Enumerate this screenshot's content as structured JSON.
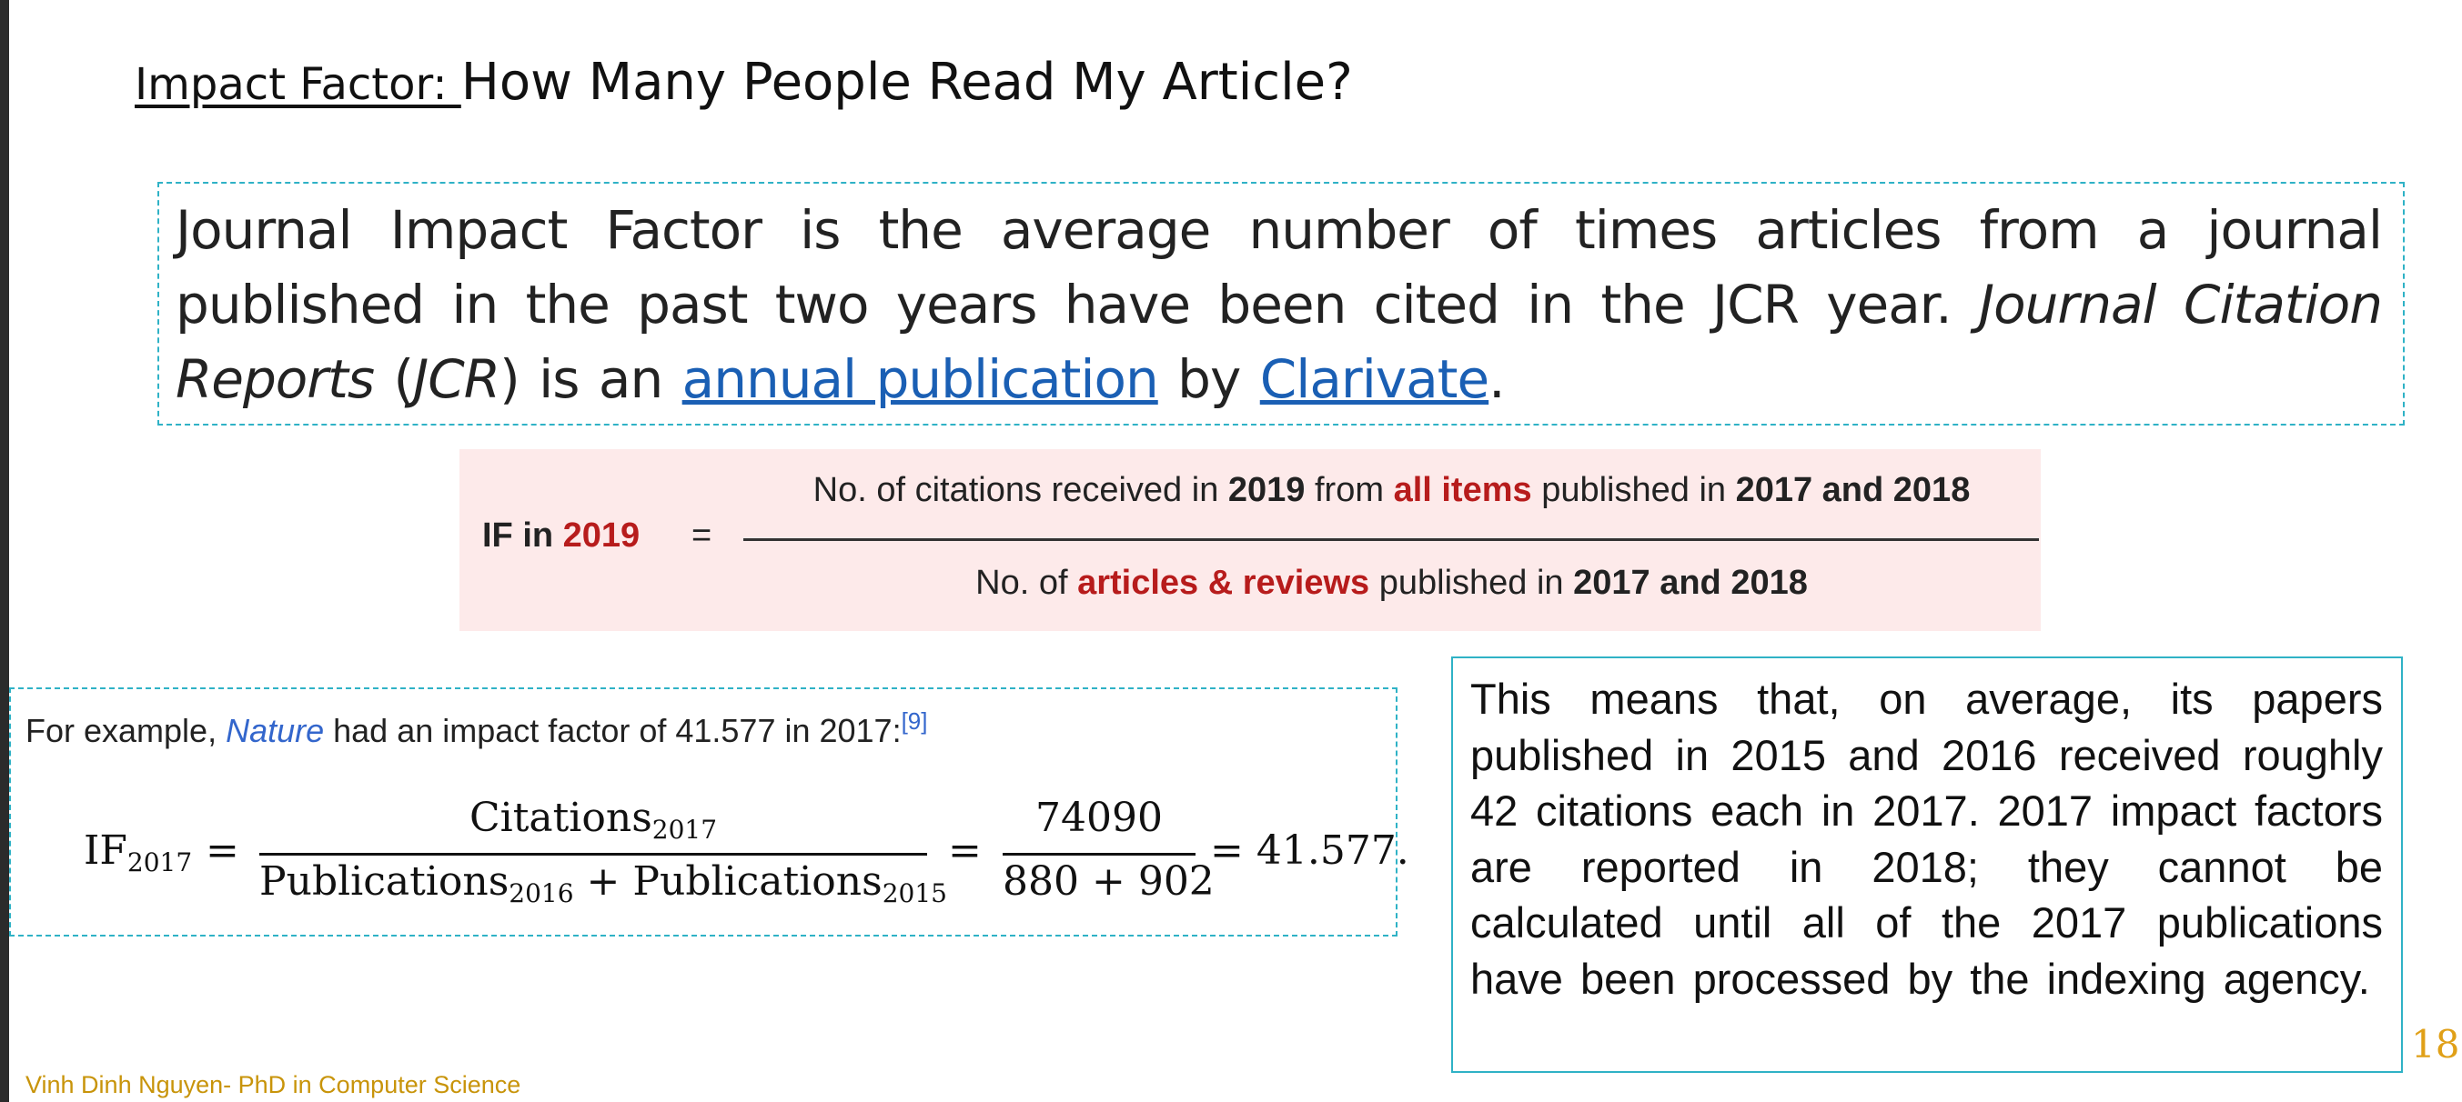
{
  "title": {
    "keyword": "Impact Factor: ",
    "question": "How Many People Read My Article?"
  },
  "definition": {
    "text1": "Journal Impact Factor is the average number of times articles from a journal published in the past two years have been cited in the JCR year. ",
    "italic1": "Journal Citation Reports",
    "text2": " (",
    "italic2": "JCR",
    "text3": ") is an ",
    "link1": "annual publication",
    "text4": " by ",
    "link2": "Clarivate",
    "text5": "."
  },
  "formula": {
    "lhs_prefix": "IF in ",
    "lhs_year": "2019",
    "equals": "=",
    "numerator": {
      "p1": "No. of citations received in ",
      "year": "2019",
      "p2": " from ",
      "highlight": "all items",
      "p3": " published in ",
      "years": "2017 and 2018"
    },
    "denominator": {
      "p1": "No. of ",
      "highlight": "articles & reviews",
      "p2": " published in ",
      "years": "2017 and 2018"
    }
  },
  "example": {
    "intro_prefix": "For example, ",
    "journal": "Nature",
    "intro_suffix": " had an impact factor of 41.577 in 2017:",
    "ref": "[9]",
    "math": {
      "lhs": "IF",
      "lhs_sub": "2017",
      "eq": "=",
      "num_word": "Citations",
      "num_sub": "2017",
      "den_word1": "Publications",
      "den_sub1": "2016",
      "plus": " + ",
      "den_word2": "Publications",
      "den_sub2": "2015",
      "num2": "74090",
      "den2": "880 + 902",
      "result": "= 41.577."
    }
  },
  "note": "This means that, on average, its papers published in 2015 and 2016 received roughly 42 citations each in 2017. 2017 impact factors are reported in 2018; they cannot be calculated until all of the 2017 publications have been processed by the indexing agency.",
  "footer": "Vinh Dinh Nguyen- PhD in Computer Science",
  "page_number": "18"
}
